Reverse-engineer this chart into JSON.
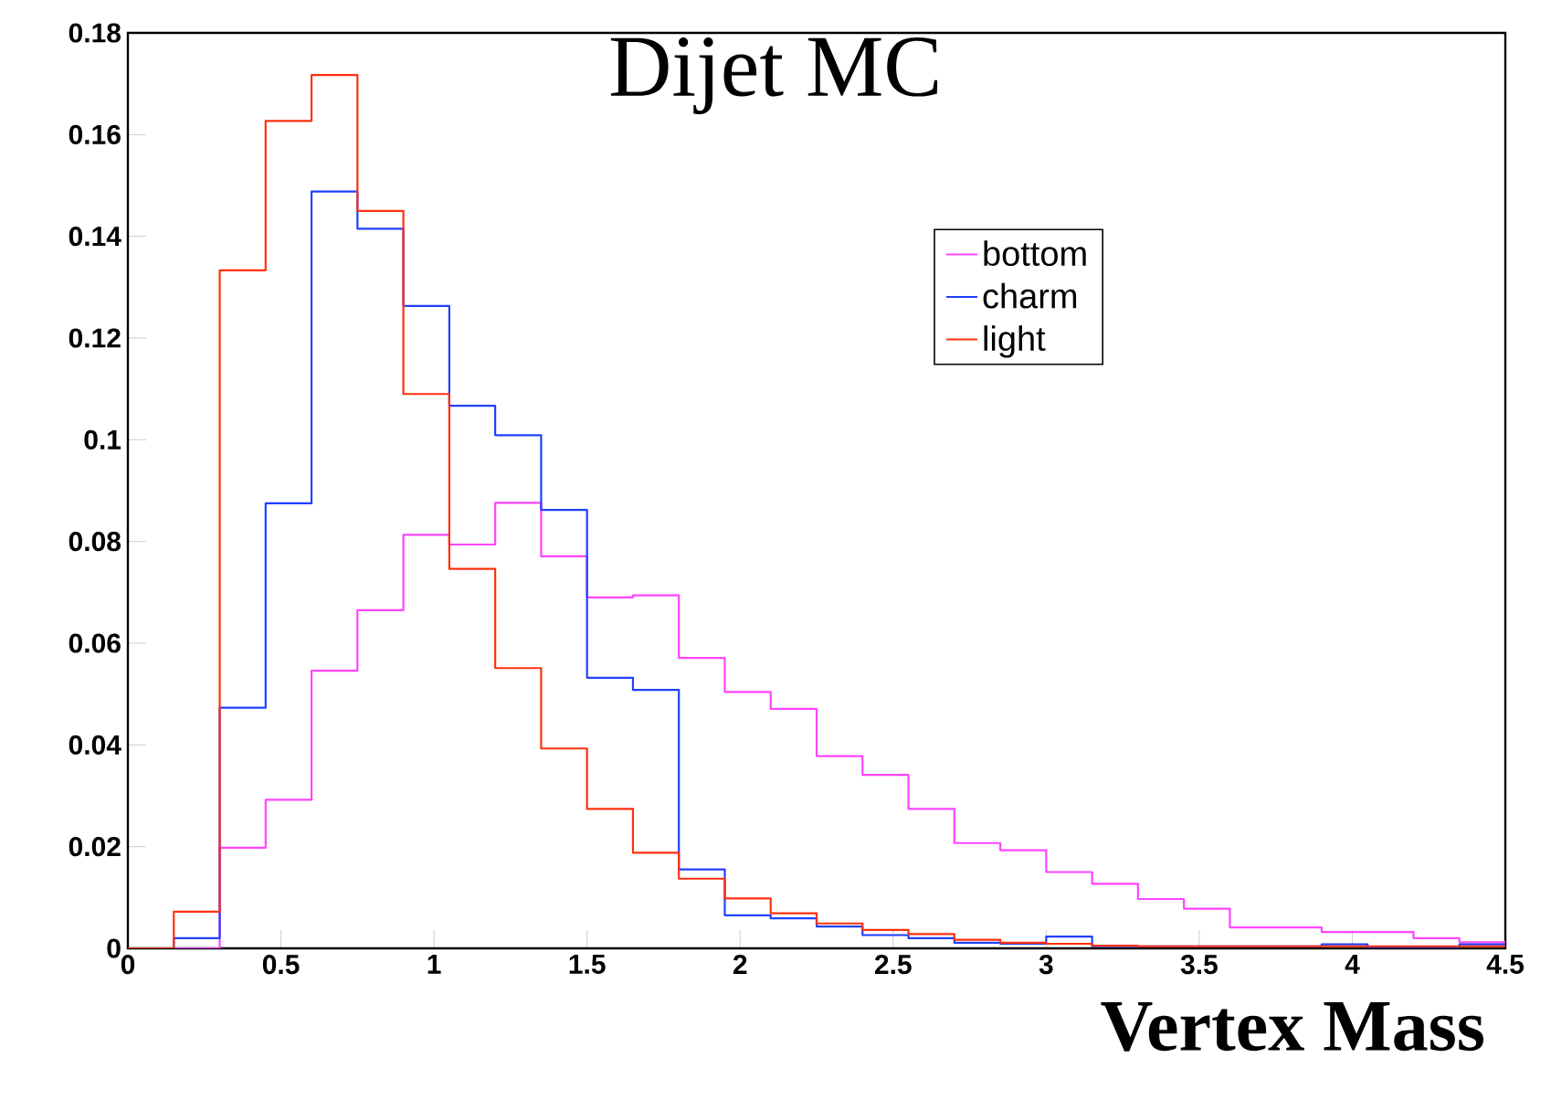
{
  "chart_data": {
    "type": "histogram",
    "title": "Dijet MC",
    "xlabel": "Vertex Mass",
    "bins": [
      0,
      0.15,
      0.3,
      0.45,
      0.6,
      0.75,
      0.9,
      1.05,
      1.2,
      1.35,
      1.5,
      1.65,
      1.8,
      1.95,
      2.1,
      2.25,
      2.4,
      2.55,
      2.7,
      2.85,
      3.0,
      3.15,
      3.3,
      3.45,
      3.6,
      3.75,
      3.9,
      4.05,
      4.2,
      4.35,
      4.5
    ],
    "series": [
      {
        "name": "bottom",
        "color": "#ff44ff",
        "values": [
          0,
          0,
          0.0198,
          0.0292,
          0.0546,
          0.0665,
          0.0813,
          0.0794,
          0.0876,
          0.0771,
          0.069,
          0.0694,
          0.0571,
          0.0504,
          0.0471,
          0.0378,
          0.0341,
          0.0274,
          0.0207,
          0.0193,
          0.015,
          0.0127,
          0.0097,
          0.0078,
          0.0041,
          0.0041,
          0.0032,
          0.0032,
          0.002,
          0.0012
        ]
      },
      {
        "name": "charm",
        "color": "#2040ff",
        "values": [
          0,
          0.002,
          0.0473,
          0.0875,
          0.1488,
          0.1415,
          0.1263,
          0.1067,
          0.1009,
          0.0862,
          0.0532,
          0.0508,
          0.0155,
          0.0065,
          0.0059,
          0.0043,
          0.0026,
          0.002,
          0.0011,
          0.0009,
          0.0023,
          0.0004,
          0.0004,
          0.0004,
          0.0004,
          0.0004,
          0.0008,
          0.0003,
          0.0003,
          0.0008
        ]
      },
      {
        "name": "light",
        "color": "#ff3010",
        "values": [
          0,
          0.0072,
          0.1333,
          0.1627,
          0.1717,
          0.145,
          0.109,
          0.0746,
          0.0551,
          0.0393,
          0.0274,
          0.0188,
          0.0137,
          0.0098,
          0.0069,
          0.0049,
          0.0036,
          0.0028,
          0.0017,
          0.0011,
          0.0009,
          0.0005,
          0.0004,
          0.0004,
          0.0004,
          0.0004,
          0.0004,
          0.0004,
          0.0004,
          0.0004
        ]
      }
    ],
    "xlim": [
      0,
      4.5
    ],
    "xticks": [
      0,
      0.5,
      1,
      1.5,
      2,
      2.5,
      3,
      3.5,
      4,
      4.5
    ],
    "ylim": [
      0,
      0.18
    ],
    "yticks": [
      0,
      0.02,
      0.04,
      0.06,
      0.08,
      0.1,
      0.12,
      0.14,
      0.16,
      0.18
    ],
    "legend": "top right"
  }
}
